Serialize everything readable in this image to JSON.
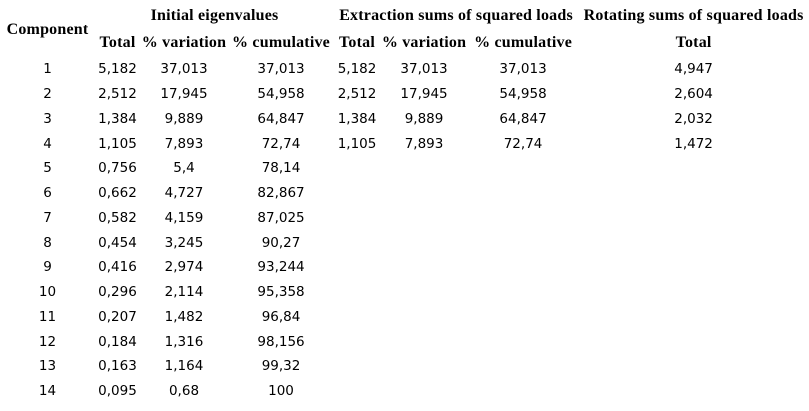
{
  "page": {
    "background_color": "#ffffff",
    "text_color": "#000000"
  },
  "table": {
    "row_header": "Component",
    "groups": [
      {
        "label": "Initial eigenvalues",
        "subcolumns": [
          "Total",
          "% variation",
          "% cumulative"
        ]
      },
      {
        "label": "Extraction sums of squared loads",
        "subcolumns": [
          "Total",
          "% variation",
          "% cumulative"
        ]
      },
      {
        "label": "Rotating sums of squared loads",
        "subcolumns": [
          "Total"
        ]
      }
    ],
    "rows": [
      [
        "1",
        "5,182",
        "37,013",
        "37,013",
        "5,182",
        "37,013",
        "37,013",
        "4,947"
      ],
      [
        "2",
        "2,512",
        "17,945",
        "54,958",
        "2,512",
        "17,945",
        "54,958",
        "2,604"
      ],
      [
        "3",
        "1,384",
        "9,889",
        "64,847",
        "1,384",
        "9,889",
        "64,847",
        "2,032"
      ],
      [
        "4",
        "1,105",
        "7,893",
        "72,74",
        "1,105",
        "7,893",
        "72,74",
        "1,472"
      ],
      [
        "5",
        "0,756",
        "5,4",
        "78,14",
        "",
        "",
        "",
        ""
      ],
      [
        "6",
        "0,662",
        "4,727",
        "82,867",
        "",
        "",
        "",
        ""
      ],
      [
        "7",
        "0,582",
        "4,159",
        "87,025",
        "",
        "",
        "",
        ""
      ],
      [
        "8",
        "0,454",
        "3,245",
        "90,27",
        "",
        "",
        "",
        ""
      ],
      [
        "9",
        "0,416",
        "2,974",
        "93,244",
        "",
        "",
        "",
        ""
      ],
      [
        "10",
        "0,296",
        "2,114",
        "95,358",
        "",
        "",
        "",
        ""
      ],
      [
        "11",
        "0,207",
        "1,482",
        "96,84",
        "",
        "",
        "",
        ""
      ],
      [
        "12",
        "0,184",
        "1,316",
        "98,156",
        "",
        "",
        "",
        ""
      ],
      [
        "13",
        "0,163",
        "1,164",
        "99,32",
        "",
        "",
        "",
        ""
      ],
      [
        "14",
        "0,095",
        "0,68",
        "100",
        "",
        "",
        "",
        ""
      ]
    ]
  }
}
